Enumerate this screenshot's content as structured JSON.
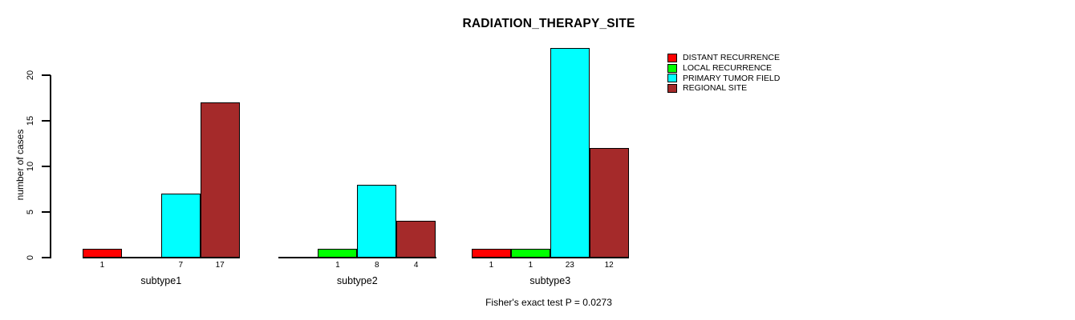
{
  "figure": {
    "background_color": "#FFFFFF",
    "text_color": "#000000"
  },
  "chart_data": {
    "type": "bar",
    "title": "RADIATION_THERAPY_SITE",
    "xlabel": "",
    "ylabel": "number of cases",
    "ylim": [
      0,
      23
    ],
    "yticks": [
      0,
      5,
      10,
      15,
      20
    ],
    "grid": false,
    "legend_position": "top-right",
    "bar_borders": "#000000",
    "value_labels_shown_for_nonzero_bars": true,
    "categories": [
      "subtype1",
      "subtype2",
      "subtype3"
    ],
    "series": [
      {
        "name": "DISTANT RECURRENCE",
        "color": "#FF0000",
        "values": [
          1,
          0,
          1
        ]
      },
      {
        "name": "LOCAL RECURRENCE",
        "color": "#00FF00",
        "values": [
          0,
          1,
          1
        ]
      },
      {
        "name": "PRIMARY TUMOR FIELD",
        "color": "#00FFFF",
        "values": [
          7,
          8,
          23
        ]
      },
      {
        "name": "REGIONAL SITE",
        "color": "#A52A2A",
        "values": [
          17,
          4,
          12
        ]
      }
    ],
    "annotation": "Fisher's exact test P = 0.0273"
  }
}
